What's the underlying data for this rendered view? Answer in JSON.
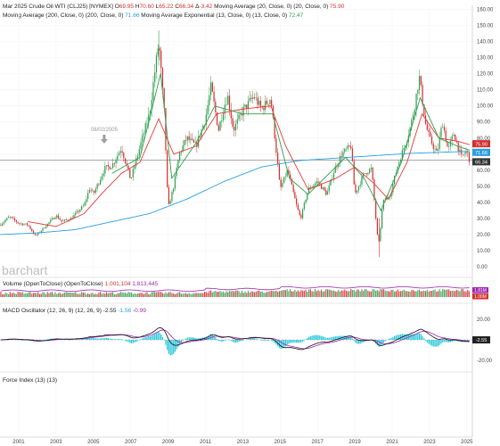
{
  "header": {
    "line1": [
      {
        "text": "Mar 2025 Crude Oil WTI (CLJ25) [NYMEX] ",
        "color": "#222222"
      },
      {
        "text": "O",
        "color": "#222222"
      },
      {
        "text": "69.95",
        "color": "#d32f2f"
      },
      {
        "text": " H",
        "color": "#222222"
      },
      {
        "text": "70.60",
        "color": "#d32f2f"
      },
      {
        "text": " L",
        "color": "#222222"
      },
      {
        "text": "65.22",
        "color": "#d32f2f"
      },
      {
        "text": " C",
        "color": "#222222"
      },
      {
        "text": "66.34",
        "color": "#d32f2f"
      },
      {
        "text": " Δ",
        "color": "#222222"
      },
      {
        "text": "-3.42",
        "color": "#d32f2f"
      },
      {
        "text": " Moving Average (20, Close, 0) (20, Close, 0) ",
        "color": "#222222"
      },
      {
        "text": "75.90",
        "color": "#d32f2f"
      }
    ],
    "line2": [
      {
        "text": "Moving Average (200, Close, 0) (200, Close, 0) ",
        "color": "#222222"
      },
      {
        "text": "71.66",
        "color": "#29a0e0"
      },
      {
        "text": " Moving Average Exponential (13, Close, 0) (13, Close, 0) ",
        "color": "#222222"
      },
      {
        "text": "72.47",
        "color": "#2e9e4f"
      }
    ]
  },
  "watermark": "barchart",
  "annotation": {
    "label": "08/02/2005",
    "date": 2005.58
  },
  "price_badges": [
    {
      "value": 75.9,
      "text": "75.90",
      "color": "#d32f2f"
    },
    {
      "value": 71.66,
      "text": "71.66",
      "color": "#29a0e0"
    },
    {
      "value": 66.34,
      "text": "66.34",
      "color": "#333333"
    }
  ],
  "volume": {
    "title_parts": [
      {
        "text": "Volume (OpenToClose) (OpenToClose) ",
        "color": "#222222"
      },
      {
        "text": "1,001,104",
        "color": "#d32f2f"
      },
      {
        "text": " ",
        "color": "#222222"
      },
      {
        "text": "1,813,445",
        "color": "#9c27b0"
      }
    ],
    "badges": [
      {
        "text": "1.81M",
        "color": "#9c27b0"
      },
      {
        "text": "1.00M",
        "color": "#d32f2f"
      }
    ]
  },
  "macd": {
    "title_parts": [
      {
        "text": "MACD Oscillator (12, 26, 9) (12, 26, 9) ",
        "color": "#222222"
      },
      {
        "text": "-2.55",
        "color": "#222222"
      },
      {
        "text": " ",
        "color": "#222222"
      },
      {
        "text": "-1.56",
        "color": "#29a0e0"
      },
      {
        "text": " ",
        "color": "#222222"
      },
      {
        "text": "-0.99",
        "color": "#9c27b0"
      }
    ],
    "badge": "-2.55",
    "ticks": [
      "20.00",
      "-20.00"
    ]
  },
  "force": {
    "title": "Force Index (13) (13)"
  },
  "colors": {
    "up": "#2e9e4f",
    "down": "#d32f2f",
    "ma20": "#e53935",
    "ma200": "#29a0e0",
    "ema13": "#2e9e4f",
    "vol_line": "#9c27b0",
    "macd_hist": "#26c6da",
    "macd_signal": "#9c27b0",
    "macd_line": "#111111"
  },
  "chart_data": {
    "type": "candlestick",
    "interval": "monthly",
    "x_range": [
      2000.0,
      2025.2
    ],
    "x_ticks": [
      "2001",
      "2003",
      "2005",
      "2007",
      "2009",
      "2011",
      "2013",
      "2015",
      "2017",
      "2019",
      "2021",
      "2023",
      "2025"
    ],
    "y_range": [
      0,
      160
    ],
    "y_ticks": [
      "0.00",
      "10.00",
      "20.00",
      "30.00",
      "40.00",
      "50.00",
      "60.00",
      "70.00",
      "80.00",
      "90.00",
      "100.00",
      "110.00",
      "120.00",
      "130.00",
      "140.00",
      "150.00",
      "160.00"
    ],
    "close_anchors": [
      [
        2000.0,
        26
      ],
      [
        2000.5,
        31
      ],
      [
        2001.0,
        27
      ],
      [
        2001.5,
        26
      ],
      [
        2001.9,
        19
      ],
      [
        2002.5,
        26
      ],
      [
        2003.0,
        32
      ],
      [
        2003.3,
        28
      ],
      [
        2003.8,
        30
      ],
      [
        2004.5,
        38
      ],
      [
        2004.8,
        49
      ],
      [
        2005.0,
        45
      ],
      [
        2005.6,
        61
      ],
      [
        2006.0,
        63
      ],
      [
        2006.5,
        74
      ],
      [
        2007.0,
        54
      ],
      [
        2007.5,
        75
      ],
      [
        2008.0,
        95
      ],
      [
        2008.5,
        140
      ],
      [
        2008.8,
        95
      ],
      [
        2009.0,
        36
      ],
      [
        2009.3,
        50
      ],
      [
        2009.6,
        70
      ],
      [
        2010.0,
        80
      ],
      [
        2010.5,
        75
      ],
      [
        2011.0,
        92
      ],
      [
        2011.3,
        112
      ],
      [
        2011.7,
        85
      ],
      [
        2012.0,
        100
      ],
      [
        2012.2,
        106
      ],
      [
        2012.5,
        85
      ],
      [
        2013.0,
        97
      ],
      [
        2013.6,
        106
      ],
      [
        2014.0,
        98
      ],
      [
        2014.5,
        105
      ],
      [
        2014.9,
        60
      ],
      [
        2015.0,
        48
      ],
      [
        2015.4,
        60
      ],
      [
        2015.9,
        37
      ],
      [
        2016.1,
        30
      ],
      [
        2016.5,
        48
      ],
      [
        2017.0,
        53
      ],
      [
        2017.5,
        45
      ],
      [
        2017.9,
        60
      ],
      [
        2018.3,
        70
      ],
      [
        2018.8,
        75
      ],
      [
        2019.0,
        45
      ],
      [
        2019.5,
        58
      ],
      [
        2019.9,
        61
      ],
      [
        2020.2,
        20
      ],
      [
        2020.3,
        15
      ],
      [
        2020.5,
        40
      ],
      [
        2020.9,
        45
      ],
      [
        2021.3,
        63
      ],
      [
        2021.8,
        80
      ],
      [
        2022.0,
        88
      ],
      [
        2022.2,
        100
      ],
      [
        2022.45,
        118
      ],
      [
        2022.8,
        88
      ],
      [
        2023.0,
        80
      ],
      [
        2023.4,
        70
      ],
      [
        2023.7,
        90
      ],
      [
        2024.0,
        72
      ],
      [
        2024.3,
        83
      ],
      [
        2024.7,
        68
      ],
      [
        2025.0,
        72
      ],
      [
        2025.15,
        66
      ]
    ],
    "ma20_anchors": [
      [
        2001.5,
        28
      ],
      [
        2003.0,
        25
      ],
      [
        2004.5,
        33
      ],
      [
        2005.5,
        46
      ],
      [
        2006.5,
        58
      ],
      [
        2007.5,
        65
      ],
      [
        2008.5,
        92
      ],
      [
        2009.3,
        70
      ],
      [
        2010.5,
        75
      ],
      [
        2011.6,
        95
      ],
      [
        2013.0,
        98
      ],
      [
        2014.5,
        100
      ],
      [
        2015.3,
        75
      ],
      [
        2016.5,
        48
      ],
      [
        2018.0,
        55
      ],
      [
        2019.0,
        62
      ],
      [
        2020.0,
        52
      ],
      [
        2020.8,
        42
      ],
      [
        2021.8,
        65
      ],
      [
        2022.6,
        95
      ],
      [
        2023.5,
        80
      ],
      [
        2024.5,
        78
      ],
      [
        2025.15,
        75.9
      ]
    ],
    "ma200_anchors": [
      [
        2000.0,
        20
      ],
      [
        2002.0,
        21
      ],
      [
        2004.0,
        23
      ],
      [
        2006.0,
        28
      ],
      [
        2008.0,
        33
      ],
      [
        2010.0,
        42
      ],
      [
        2012.0,
        53
      ],
      [
        2014.0,
        62
      ],
      [
        2016.0,
        66
      ],
      [
        2018.0,
        67.5
      ],
      [
        2020.0,
        69
      ],
      [
        2022.0,
        70.5
      ],
      [
        2024.0,
        71.3
      ],
      [
        2025.15,
        71.66
      ]
    ],
    "ema13_anchors": [
      [
        2006.0,
        58
      ],
      [
        2007.5,
        68
      ],
      [
        2008.6,
        120
      ],
      [
        2009.2,
        55
      ],
      [
        2010.5,
        77
      ],
      [
        2011.5,
        100
      ],
      [
        2013.0,
        95
      ],
      [
        2014.6,
        95
      ],
      [
        2015.5,
        55
      ],
      [
        2016.5,
        45
      ],
      [
        2018.5,
        68
      ],
      [
        2019.5,
        55
      ],
      [
        2020.4,
        35
      ],
      [
        2021.5,
        65
      ],
      [
        2022.5,
        105
      ],
      [
        2023.5,
        80
      ],
      [
        2024.5,
        75
      ],
      [
        2025.15,
        72.47
      ]
    ]
  }
}
